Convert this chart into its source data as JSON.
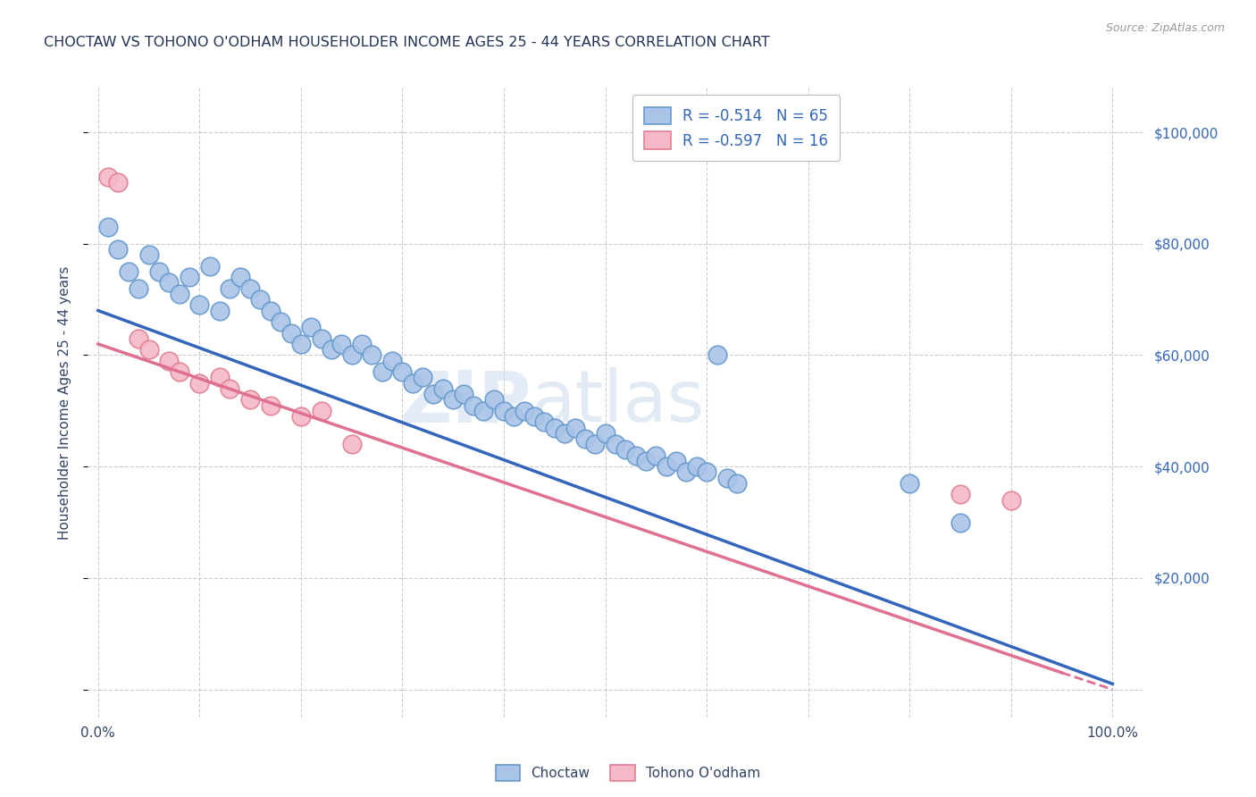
{
  "title": "CHOCTAW VS TOHONO O'ODHAM HOUSEHOLDER INCOME AGES 25 - 44 YEARS CORRELATION CHART",
  "source": "Source: ZipAtlas.com",
  "ylabel": "Householder Income Ages 25 - 44 years",
  "choctaw_R": -0.514,
  "choctaw_N": 65,
  "tohono_R": -0.597,
  "tohono_N": 16,
  "choctaw_color": "#aac4e8",
  "choctaw_edge_color": "#6699cc",
  "choctaw_line_color": "#3366bb",
  "tohono_color": "#f5b8c8",
  "tohono_edge_color": "#e08090",
  "tohono_line_color": "#e07090",
  "background_color": "#ffffff",
  "grid_color": "#cccccc",
  "title_color": "#223355",
  "legend_label_color": "#3366bb",
  "right_axis_color": "#3366bb",
  "choctaw_x": [
    1,
    2,
    3,
    4,
    5,
    6,
    7,
    8,
    9,
    10,
    11,
    12,
    13,
    14,
    15,
    16,
    17,
    18,
    19,
    20,
    21,
    22,
    23,
    24,
    25,
    26,
    27,
    28,
    29,
    30,
    31,
    32,
    33,
    34,
    35,
    36,
    37,
    38,
    39,
    40,
    41,
    42,
    43,
    44,
    45,
    46,
    47,
    48,
    49,
    50,
    51,
    52,
    53,
    54,
    55,
    56,
    57,
    58,
    59,
    60,
    61,
    62,
    63,
    80,
    85
  ],
  "choctaw_y": [
    83000,
    79000,
    75000,
    72000,
    78000,
    75000,
    73000,
    71000,
    74000,
    69000,
    76000,
    68000,
    72000,
    74000,
    72000,
    70000,
    68000,
    66000,
    64000,
    62000,
    65000,
    63000,
    61000,
    62000,
    60000,
    62000,
    60000,
    57000,
    59000,
    57000,
    55000,
    56000,
    53000,
    54000,
    52000,
    53000,
    51000,
    50000,
    52000,
    50000,
    49000,
    50000,
    49000,
    48000,
    47000,
    46000,
    47000,
    45000,
    44000,
    46000,
    44000,
    43000,
    42000,
    41000,
    42000,
    40000,
    41000,
    39000,
    40000,
    39000,
    60000,
    38000,
    37000,
    37000,
    30000
  ],
  "tohono_x": [
    1,
    2,
    4,
    5,
    7,
    8,
    10,
    12,
    13,
    15,
    17,
    20,
    22,
    25,
    85,
    90
  ],
  "tohono_y": [
    92000,
    91000,
    63000,
    61000,
    59000,
    57000,
    55000,
    56000,
    54000,
    52000,
    51000,
    49000,
    50000,
    44000,
    35000,
    34000
  ],
  "choctaw_line": [
    0,
    68000,
    100,
    1000
  ],
  "tohono_line_solid": [
    0,
    62000,
    95,
    3000
  ],
  "tohono_line_dash": [
    95,
    3000,
    100,
    0
  ],
  "yticks": [
    0,
    20000,
    40000,
    60000,
    80000,
    100000
  ],
  "ytick_labels_right": [
    "",
    "$20,000",
    "$40,000",
    "$60,000",
    "$80,000",
    "$100,000"
  ],
  "xtick_labels": [
    "0.0%",
    "",
    "",
    "",
    "",
    "",
    "",
    "",
    "",
    "",
    "100.0%"
  ],
  "ymax": 108000,
  "ymin": -5000,
  "xmin": -1,
  "xmax": 103
}
